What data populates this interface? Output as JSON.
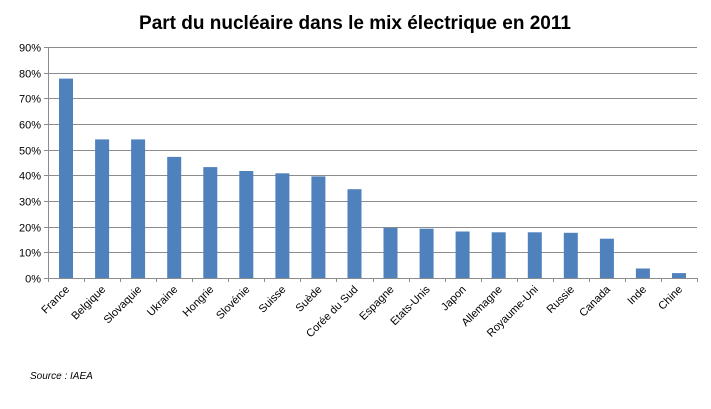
{
  "chart_data": {
    "type": "bar",
    "title": "Part du nucléaire dans le mix électrique en 2011",
    "xlabel": "",
    "ylabel": "",
    "categories": [
      "France",
      "Belgique",
      "Slovaquie",
      "Ukraine",
      "Hongrie",
      "Slovénie",
      "Suisse",
      "Suède",
      "Corée du Sud",
      "Espagne",
      "Etats-Unis",
      "Japon",
      "Allemagne",
      "Royaume-Uni",
      "Russie",
      "Canada",
      "Inde",
      "Chine"
    ],
    "values": [
      77.7,
      54.0,
      54.0,
      47.2,
      43.2,
      41.7,
      40.8,
      39.6,
      34.6,
      19.5,
      19.2,
      18.1,
      17.8,
      17.8,
      17.6,
      15.3,
      3.7,
      1.9
    ],
    "ylim": [
      0,
      90
    ],
    "yticks": [
      0,
      10,
      20,
      30,
      40,
      50,
      60,
      70,
      80,
      90
    ],
    "ytick_labels": [
      "0%",
      "10%",
      "20%",
      "30%",
      "40%",
      "50%",
      "60%",
      "70%",
      "80%",
      "90%"
    ],
    "grid": true,
    "bar_color": "#4F81BD",
    "grid_color": "#8C8C8C"
  },
  "source": "Source : IAEA"
}
